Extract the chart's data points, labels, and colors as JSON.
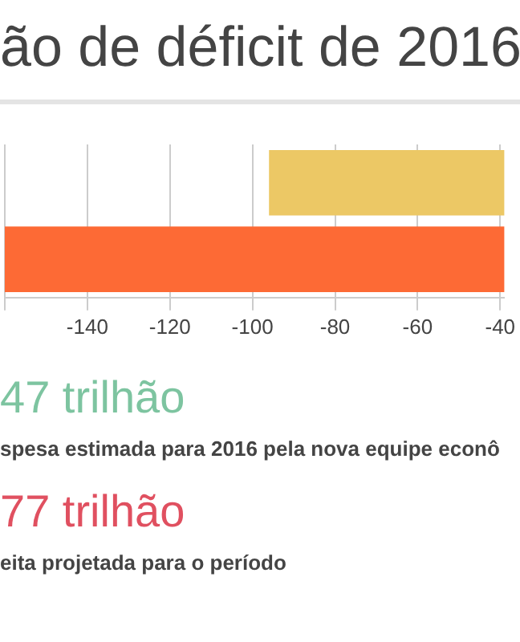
{
  "chart_data": {
    "type": "bar",
    "orientation": "horizontal",
    "title": "ão de déficit de 2016",
    "categories": [
      null,
      null
    ],
    "values": [
      -96,
      -160
    ],
    "colors": [
      "#ecc865",
      "#fd6a35"
    ],
    "xlim": [
      -160,
      -39
    ],
    "xticks": [
      {
        "value": -160,
        "label": null
      },
      -140,
      -120,
      -100,
      -80,
      -60,
      -40
    ],
    "grid": "x",
    "annotations": [
      "47 trilhão",
      "spesa estimada para 2016 pela nova equipe econô",
      "77 trilhão",
      "eita projetada para o período"
    ]
  }
}
